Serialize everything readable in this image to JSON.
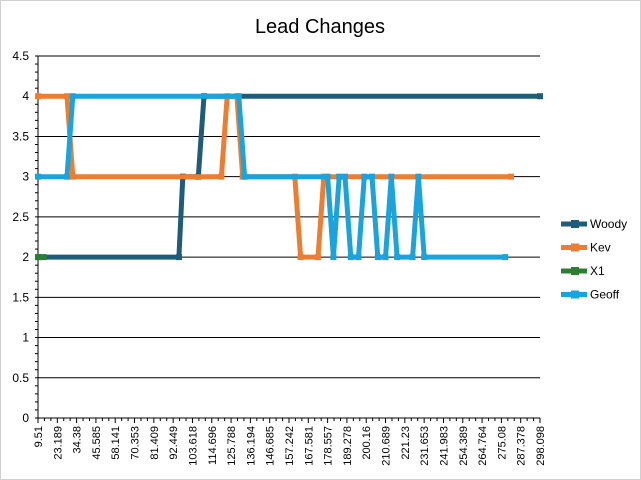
{
  "chart_data": {
    "type": "line",
    "title": "Lead Changes",
    "xlabel": "",
    "ylabel": "",
    "ylim": [
      0,
      4.5
    ],
    "y_ticks": [
      "0",
      "0.5",
      "1",
      "1.5",
      "2",
      "2.5",
      "3",
      "3.5",
      "4",
      "4.5"
    ],
    "x_ticks": [
      "9.51",
      "23.189",
      "34.38",
      "45.585",
      "58.141",
      "70.353",
      "81.409",
      "92.449",
      "103.618",
      "114.696",
      "125.788",
      "136.194",
      "146.685",
      "157.242",
      "167.581",
      "178.557",
      "189.278",
      "200.16",
      "210.689",
      "221.23",
      "231.653",
      "241.983",
      "254.389",
      "264.764",
      "275.08",
      "287.378",
      "298.098"
    ],
    "x_range": [
      0,
      26
    ],
    "grid": true,
    "legend_position": "right",
    "series": [
      {
        "name": "Woody",
        "color": "#1F5C7A",
        "points": [
          [
            0,
            2
          ],
          [
            7.3,
            2
          ],
          [
            7.5,
            3
          ],
          [
            8.3,
            3
          ],
          [
            8.6,
            4
          ],
          [
            26,
            4
          ]
        ]
      },
      {
        "name": "Kev",
        "color": "#ED7D31",
        "points": [
          [
            0,
            4
          ],
          [
            1.5,
            4
          ],
          [
            1.8,
            3
          ],
          [
            9.5,
            3
          ],
          [
            9.8,
            4
          ],
          [
            10.3,
            4
          ],
          [
            10.6,
            3
          ],
          [
            13.3,
            3
          ],
          [
            13.6,
            2
          ],
          [
            14.5,
            2
          ],
          [
            14.8,
            3
          ],
          [
            24.5,
            3
          ]
        ]
      },
      {
        "name": "X1",
        "color": "#2E7D32",
        "points": [
          [
            0,
            2
          ],
          [
            0.3,
            2
          ]
        ]
      },
      {
        "name": "Geoff",
        "color": "#1AA3DC",
        "points": [
          [
            0,
            3
          ],
          [
            1.5,
            3
          ],
          [
            1.8,
            4
          ],
          [
            10.4,
            4
          ],
          [
            10.7,
            3
          ],
          [
            15.0,
            3
          ],
          [
            15.3,
            2
          ],
          [
            15.6,
            3
          ],
          [
            15.9,
            3
          ],
          [
            16.2,
            2
          ],
          [
            16.6,
            2
          ],
          [
            16.9,
            3
          ],
          [
            17.3,
            3
          ],
          [
            17.6,
            2
          ],
          [
            18.0,
            2
          ],
          [
            18.3,
            3
          ],
          [
            18.6,
            2
          ],
          [
            19.4,
            2
          ],
          [
            19.7,
            3
          ],
          [
            20.0,
            2
          ],
          [
            24.2,
            2
          ]
        ]
      }
    ]
  }
}
